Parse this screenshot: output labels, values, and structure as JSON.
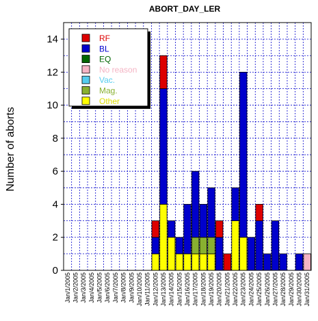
{
  "chart_data": {
    "type": "bar",
    "stacked": true,
    "title": "ABORT_DAY_LER",
    "xlabel": "",
    "ylabel": "Number of aborts",
    "ylim": [
      0,
      15
    ],
    "yticks": [
      0,
      2,
      4,
      6,
      8,
      10,
      12,
      14
    ],
    "grid": true,
    "legend_position": "top-left",
    "categories": [
      "Jan/1/2005",
      "Jan/2/2005",
      "Jan/3/2005",
      "Jan/4/2005",
      "Jan/5/2005",
      "Jan/6/2005",
      "Jan/7/2005",
      "Jan/8/2005",
      "Jan/9/2005",
      "Jan/10/2005",
      "Jan/11/2005",
      "Jan/12/2005",
      "Jan/13/2005",
      "Jan/14/2005",
      "Jan/15/2005",
      "Jan/16/2005",
      "Jan/17/2005",
      "Jan/18/2005",
      "Jan/19/2005",
      "Jan/20/2005",
      "Jan/21/2005",
      "Jan/22/2005",
      "Jan/23/2005",
      "Jan/24/2005",
      "Jan/25/2005",
      "Jan/26/2005",
      "Jan/27/2005",
      "Jan/28/2005",
      "Jan/29/2005",
      "Jan/30/2005",
      "Jan/31/2005"
    ],
    "series": [
      {
        "name": "Other",
        "color": "#ffff00",
        "values": [
          0,
          0,
          0,
          0,
          0,
          0,
          0,
          0,
          0,
          0,
          0,
          1,
          4,
          2,
          1,
          1,
          1,
          1,
          1,
          0,
          0,
          3,
          2,
          0,
          0,
          0,
          0,
          0,
          0,
          0,
          0
        ]
      },
      {
        "name": "Mag.",
        "color": "#88b030",
        "values": [
          0,
          0,
          0,
          0,
          0,
          0,
          0,
          0,
          0,
          0,
          0,
          0,
          0,
          0,
          0,
          0,
          1,
          1,
          1,
          0,
          0,
          0,
          0,
          0,
          0,
          0,
          0,
          0,
          0,
          0,
          0
        ]
      },
      {
        "name": "Vac.",
        "color": "#55ccee",
        "values": [
          0,
          0,
          0,
          0,
          0,
          0,
          0,
          0,
          0,
          0,
          0,
          0,
          0,
          0,
          0,
          0,
          0,
          0,
          0,
          0,
          0,
          0,
          0,
          0,
          0,
          0,
          0,
          0,
          0,
          0,
          0
        ]
      },
      {
        "name": "No reason",
        "color": "#f4b4c4",
        "values": [
          0,
          0,
          0,
          0,
          0,
          0,
          0,
          0,
          0,
          0,
          0,
          0,
          0,
          0,
          0,
          0,
          0,
          0,
          0,
          0,
          0,
          0,
          0,
          0,
          0,
          0,
          0,
          0,
          0,
          0,
          1
        ]
      },
      {
        "name": "EQ",
        "color": "#006600",
        "values": [
          0,
          0,
          0,
          0,
          0,
          0,
          0,
          0,
          0,
          0,
          0,
          0,
          0,
          0,
          0,
          0,
          0,
          0,
          0,
          0,
          0,
          0,
          0,
          0,
          0,
          0,
          0,
          0,
          0,
          0,
          0
        ]
      },
      {
        "name": "BL",
        "color": "#0000cc",
        "values": [
          0,
          0,
          0,
          0,
          0,
          0,
          0,
          0,
          0,
          0,
          0,
          1,
          7,
          1,
          1,
          3,
          4,
          2,
          3,
          2,
          0,
          2,
          10,
          2,
          3,
          1,
          3,
          1,
          0,
          1,
          0
        ]
      },
      {
        "name": "RF",
        "color": "#dd0000",
        "values": [
          0,
          0,
          0,
          0,
          0,
          0,
          0,
          0,
          0,
          0,
          0,
          1,
          2,
          0,
          0,
          0,
          0,
          0,
          0,
          1,
          1,
          0,
          0,
          0,
          1,
          0,
          0,
          0,
          0,
          0,
          0
        ]
      }
    ],
    "legend_order": [
      "RF",
      "BL",
      "EQ",
      "No reason",
      "Vac.",
      "Mag.",
      "Other"
    ],
    "legend_text_colors": {
      "RF": "#dd0000",
      "BL": "#0000cc",
      "EQ": "#006600",
      "No reason": "#f4b4c4",
      "Vac.": "#55ccee",
      "Mag.": "#88b030",
      "Other": "#dddd00"
    }
  }
}
